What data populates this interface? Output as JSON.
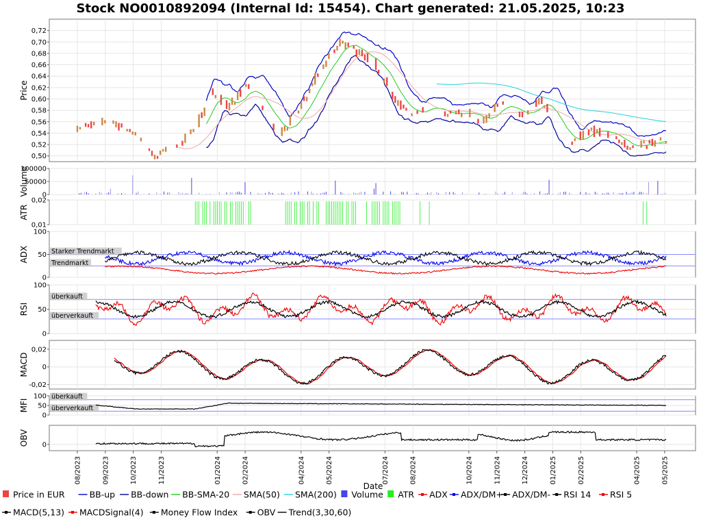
{
  "chart_data": {
    "type": "line",
    "title": "Stock NO0010892094 (Internal Id: 15454). Chart generated: 21.05.2025, 10:23",
    "xlabel": "Date",
    "x_ticks": [
      "08/2023",
      "09/2023",
      "10/2023",
      "11/2023",
      "01/2024",
      "02/2024",
      "04/2024",
      "05/2024",
      "07/2024",
      "08/2024",
      "10/2024",
      "11/2024",
      "12/2024",
      "01/2025",
      "02/2025",
      "04/2025",
      "05/2025"
    ],
    "x_tick_months": [
      0,
      1,
      2,
      3,
      5,
      6,
      8,
      9,
      11,
      12,
      14,
      15,
      16,
      17,
      18,
      20,
      21
    ],
    "date_range": [
      "2023-08-15",
      "2025-05-20"
    ],
    "panels": [
      {
        "ylabel": "Price",
        "ylim": [
          0.49,
          0.74
        ],
        "ticks": [
          "0,50",
          "0,52",
          "0,54",
          "0,56",
          "0,58",
          "0,60",
          "0,62",
          "0,64",
          "0,66",
          "0,68",
          "0,70",
          "0,72"
        ],
        "tick_values": [
          0.5,
          0.52,
          0.54,
          0.56,
          0.58,
          0.6,
          0.62,
          0.64,
          0.66,
          0.68,
          0.7,
          0.72
        ]
      },
      {
        "ylabel": "Volume",
        "ylim": [
          0,
          100000
        ],
        "ticks": [
          "0",
          "50000",
          "100000"
        ],
        "tick_values": [
          0,
          50000,
          100000
        ]
      },
      {
        "ylabel": "ATR",
        "ylim": [
          0.01,
          0.02
        ],
        "ticks": [
          "0,01",
          "0,02"
        ],
        "tick_values": [
          0.01,
          0.02
        ]
      },
      {
        "ylabel": "ADX",
        "ylim": [
          0,
          100
        ],
        "ticks": [
          "0",
          "50",
          "100"
        ],
        "tick_values": [
          0,
          50,
          100
        ],
        "zones": [
          {
            "label": "Starker Trendmarkt",
            "value": 50
          },
          {
            "label": "Trendmarkt",
            "value": 25
          }
        ]
      },
      {
        "ylabel": "RSI",
        "ylim": [
          0,
          100
        ],
        "ticks": [
          "0",
          "50",
          "100"
        ],
        "tick_values": [
          0,
          50,
          100
        ],
        "zones": [
          {
            "label": "überkauft",
            "value": 70
          },
          {
            "label": "überverkauft",
            "value": 30
          }
        ]
      },
      {
        "ylabel": "MACD",
        "ylim": [
          -0.025,
          0.03
        ],
        "ticks": [
          "-0,02",
          "0",
          "0,02"
        ],
        "tick_values": [
          -0.02,
          0,
          0.02
        ]
      },
      {
        "ylabel": "MFI",
        "ylim": [
          0,
          100
        ],
        "ticks": [
          "0",
          "50",
          "100"
        ],
        "tick_values": [
          0,
          50,
          100
        ],
        "zones": [
          {
            "label": "überkauft",
            "value": 80
          },
          {
            "label": "überverkauft",
            "value": 20
          }
        ]
      },
      {
        "ylabel": "OBV",
        "ylim": [
          -1,
          3
        ],
        "ticks": [
          "0"
        ],
        "tick_values": [
          0
        ]
      }
    ],
    "price_path": [
      [
        0,
        0.55
      ],
      [
        0.06,
        0.56
      ],
      [
        0.1,
        0.54
      ],
      [
        0.13,
        0.5
      ],
      [
        0.17,
        0.515
      ],
      [
        0.2,
        0.545
      ],
      [
        0.23,
        0.61
      ],
      [
        0.26,
        0.585
      ],
      [
        0.29,
        0.625
      ],
      [
        0.32,
        0.575
      ],
      [
        0.35,
        0.54
      ],
      [
        0.38,
        0.585
      ],
      [
        0.41,
        0.64
      ],
      [
        0.43,
        0.67
      ],
      [
        0.45,
        0.7
      ],
      [
        0.48,
        0.68
      ],
      [
        0.51,
        0.66
      ],
      [
        0.54,
        0.6
      ],
      [
        0.57,
        0.57
      ],
      [
        0.6,
        0.59
      ],
      [
        0.63,
        0.57
      ],
      [
        0.66,
        0.58
      ],
      [
        0.69,
        0.56
      ],
      [
        0.72,
        0.59
      ],
      [
        0.76,
        0.57
      ],
      [
        0.79,
        0.6
      ],
      [
        0.81,
        0.56
      ],
      [
        0.84,
        0.52
      ],
      [
        0.87,
        0.545
      ],
      [
        0.9,
        0.54
      ],
      [
        0.94,
        0.515
      ],
      [
        1.0,
        0.53
      ]
    ],
    "series": [
      {
        "name": "Price in EUR",
        "color": "#ee4444",
        "marker": "square"
      },
      {
        "name": "BB-up",
        "color": "#0000cc",
        "marker": "line"
      },
      {
        "name": "BB-down",
        "color": "#000099",
        "marker": "line"
      },
      {
        "name": "BB-SMA-20",
        "color": "#22cc22",
        "marker": "line"
      },
      {
        "name": "SMA(50)",
        "color": "#f0a8a8",
        "marker": "line"
      },
      {
        "name": "SMA(200)",
        "color": "#22d0e0",
        "marker": "line"
      },
      {
        "name": "Volume",
        "color": "#4444ee",
        "marker": "square"
      },
      {
        "name": "ATR",
        "color": "#22ee22",
        "marker": "square"
      },
      {
        "name": "ADX",
        "color": "#ee0000",
        "marker": "dotline"
      },
      {
        "name": "ADX/DM+",
        "color": "#0000ee",
        "marker": "dotline"
      },
      {
        "name": "ADX/DM-",
        "color": "#000000",
        "marker": "dotline"
      },
      {
        "name": "RSI 14",
        "color": "#000000",
        "marker": "dotline"
      },
      {
        "name": "RSI 5",
        "color": "#ee0000",
        "marker": "dotline"
      },
      {
        "name": "MACD(5,13)",
        "color": "#000000",
        "marker": "dotline"
      },
      {
        "name": "MACDSignal(4)",
        "color": "#ee0000",
        "marker": "dotline"
      },
      {
        "name": "Money Flow Index",
        "color": "#000000",
        "marker": "dotline"
      },
      {
        "name": "OBV",
        "color": "#000000",
        "marker": "dotline"
      },
      {
        "name": "Trend(3,30,60)",
        "color": "#000000",
        "marker": "line"
      }
    ],
    "grid": true,
    "legend_position": "bottom"
  }
}
